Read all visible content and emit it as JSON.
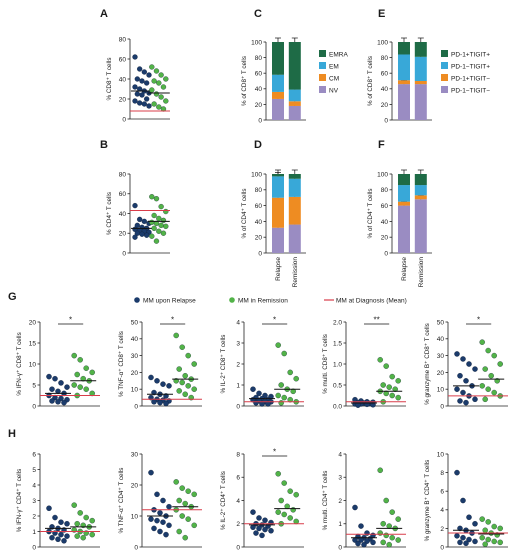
{
  "figure": {
    "panel_letters": [
      "A",
      "B",
      "C",
      "D",
      "E",
      "F",
      "G",
      "H"
    ],
    "legend_g": {
      "items": [
        {
          "label": "MM upon Relapse",
          "color": "#1b3b6b"
        },
        {
          "label": "MM in Remission",
          "color": "#52b348"
        },
        {
          "label": "MM at Diagnosis (Mean)",
          "color": "#d93d4a"
        }
      ]
    },
    "stack_groups": [
      "Relapse",
      "Remission"
    ]
  },
  "colors": {
    "relapse": "#1b3b6b",
    "remission": "#52b348",
    "diagnosis": "#d93d4a",
    "emra": "#1e6b46",
    "em": "#38a8d8",
    "cm": "#ee8c22",
    "nv": "#9a8cc2"
  },
  "chart_data": [
    {
      "id": "A",
      "type": "scatter",
      "ylabel": "% CD8⁺ T cells",
      "ylim": [
        0,
        80
      ],
      "yticks": [
        0,
        20,
        40,
        60,
        80
      ],
      "relapse": [
        62,
        50,
        47,
        44,
        40,
        38,
        36,
        32,
        30,
        28,
        26,
        25,
        24,
        20,
        18,
        16,
        15,
        13
      ],
      "remission": [
        52,
        48,
        44,
        40,
        38,
        36,
        32,
        29,
        25,
        22,
        18,
        15,
        12,
        10
      ],
      "relapse_mean": 28,
      "remission_mean": 26,
      "diagnosis_mean": 8,
      "sig": ""
    },
    {
      "id": "B",
      "type": "scatter",
      "ylabel": "% CD4⁺ T cells",
      "ylim": [
        0,
        80
      ],
      "yticks": [
        0,
        20,
        40,
        60,
        80
      ],
      "relapse": [
        48,
        34,
        32,
        30,
        28,
        26,
        25,
        24,
        23,
        22,
        21,
        20,
        19,
        18,
        16
      ],
      "remission": [
        57,
        55,
        47,
        42,
        38,
        35,
        33,
        31,
        30,
        28,
        27,
        25,
        22,
        20,
        17,
        12
      ],
      "relapse_mean": 25,
      "remission_mean": 32,
      "diagnosis_mean": 43,
      "sig": ""
    },
    {
      "id": "C",
      "type": "bar",
      "stacked": true,
      "ylabel": "% of CD8⁺ T cells",
      "ylim": [
        0,
        100
      ],
      "yticks": [
        0,
        20,
        40,
        60,
        80,
        100
      ],
      "categories": [
        "Relapse",
        "Remission"
      ],
      "series": [
        {
          "name": "NV",
          "values": [
            27,
            18
          ]
        },
        {
          "name": "CM",
          "values": [
            9,
            6
          ]
        },
        {
          "name": "EM",
          "values": [
            22,
            15
          ]
        },
        {
          "name": "EMRA",
          "values": [
            42,
            61
          ]
        }
      ]
    },
    {
      "id": "D",
      "type": "bar",
      "stacked": true,
      "ylabel": "% of CD4⁺ T cells",
      "ylim": [
        0,
        100
      ],
      "yticks": [
        0,
        20,
        40,
        60,
        80,
        100
      ],
      "categories": [
        "Relapse",
        "Remission"
      ],
      "series": [
        {
          "name": "NV",
          "values": [
            32,
            36
          ]
        },
        {
          "name": "CM",
          "values": [
            38,
            35
          ]
        },
        {
          "name": "EM",
          "values": [
            27,
            23
          ]
        },
        {
          "name": "EMRA",
          "values": [
            3,
            6
          ]
        }
      ]
    },
    {
      "id": "E",
      "type": "bar",
      "stacked": true,
      "ylabel": "% of CD8⁺ T cells",
      "ylim": [
        0,
        100
      ],
      "yticks": [
        0,
        20,
        40,
        60,
        80,
        100
      ],
      "categories": [
        "Relapse",
        "Remission"
      ],
      "series": [
        {
          "name": "PD-1−TIGIT−",
          "values": [
            46,
            46
          ]
        },
        {
          "name": "PD-1+TIGIT−",
          "values": [
            5,
            4
          ]
        },
        {
          "name": "PD-1−TIGIT+",
          "values": [
            33,
            31
          ]
        },
        {
          "name": "PD-1+TIGIT+",
          "values": [
            16,
            19
          ]
        }
      ]
    },
    {
      "id": "F",
      "type": "bar",
      "stacked": true,
      "ylabel": "% of CD4⁺ T cells",
      "ylim": [
        0,
        100
      ],
      "yticks": [
        0,
        20,
        40,
        60,
        80,
        100
      ],
      "categories": [
        "Relapse",
        "Remission"
      ],
      "series": [
        {
          "name": "PD-1−TIGIT−",
          "values": [
            60,
            68
          ]
        },
        {
          "name": "PD-1+TIGIT−",
          "values": [
            5,
            5
          ]
        },
        {
          "name": "PD-1−TIGIT+",
          "values": [
            21,
            13
          ]
        },
        {
          "name": "PD-1+TIGIT+",
          "values": [
            14,
            14
          ]
        }
      ]
    },
    {
      "id": "G1",
      "type": "scatter",
      "ylabel": "% IFN-γ⁺ CD8⁺ T cells",
      "ylim": [
        0,
        20
      ],
      "yticks": [
        0,
        5,
        10,
        15,
        20
      ],
      "relapse": [
        7,
        6.5,
        5.5,
        4.5,
        4,
        3.5,
        3,
        2.5,
        2,
        1.8,
        1.5,
        1.2,
        1,
        0.8
      ],
      "remission": [
        12,
        11,
        9,
        8,
        7.5,
        6.5,
        6,
        5,
        4.5,
        4,
        3,
        2.5
      ],
      "relapse_mean": 3,
      "remission_mean": 6,
      "diagnosis_mean": 2.5,
      "sig": "*"
    },
    {
      "id": "G2",
      "type": "scatter",
      "ylabel": "% TNF-α⁺ CD8⁺ T cells",
      "ylim": [
        0,
        50
      ],
      "yticks": [
        0,
        10,
        20,
        30,
        40,
        50
      ],
      "relapse": [
        17,
        15,
        13,
        12,
        8,
        7,
        6,
        5,
        4,
        3.5,
        3,
        2.5,
        2,
        1.5
      ],
      "remission": [
        42,
        35,
        30,
        25,
        22,
        18,
        16,
        15,
        14,
        12,
        10,
        9,
        7,
        5
      ],
      "relapse_mean": 7,
      "remission_mean": 16,
      "diagnosis_mean": 4,
      "sig": "*"
    },
    {
      "id": "G3",
      "type": "scatter",
      "ylabel": "% IL-2⁺ CD8⁺ T cells",
      "ylim": [
        0,
        4
      ],
      "yticks": [
        0,
        1,
        2,
        3,
        4
      ],
      "relapse": [
        0.8,
        0.6,
        0.5,
        0.45,
        0.4,
        0.35,
        0.3,
        0.3,
        0.25,
        0.2,
        0.2,
        0.15,
        0.1,
        0.1
      ],
      "remission": [
        2.9,
        2.5,
        1.6,
        1.3,
        1.0,
        0.8,
        0.7,
        0.5,
        0.4,
        0.3,
        0.2,
        0.15
      ],
      "relapse_mean": 0.35,
      "remission_mean": 0.8,
      "diagnosis_mean": 0.2,
      "sig": "*"
    },
    {
      "id": "G4",
      "type": "scatter",
      "ylabel": "% multi. CD8⁺ T cells",
      "ylim": [
        0,
        2.0
      ],
      "yticks": [
        0.0,
        0.5,
        1.0,
        1.5,
        2.0
      ],
      "relapse": [
        0.15,
        0.12,
        0.1,
        0.09,
        0.08,
        0.07,
        0.06,
        0.05,
        0.05,
        0.04,
        0.03,
        0.02
      ],
      "remission": [
        1.1,
        0.95,
        0.7,
        0.6,
        0.5,
        0.45,
        0.4,
        0.35,
        0.3,
        0.25,
        0.2,
        0.1
      ],
      "relapse_mean": 0.07,
      "remission_mean": 0.35,
      "diagnosis_mean": 0.1,
      "sig": "**"
    },
    {
      "id": "G5",
      "type": "scatter",
      "ylabel": "% granzyme B⁺ CD8⁺ T cells",
      "ylim": [
        0,
        50
      ],
      "yticks": [
        0,
        10,
        20,
        30,
        40,
        50
      ],
      "relapse": [
        31,
        28,
        25,
        22,
        18,
        15,
        12,
        10,
        8,
        6,
        4,
        3,
        2
      ],
      "remission": [
        38,
        33,
        30,
        25,
        22,
        18,
        15,
        12,
        10,
        8,
        6,
        4
      ],
      "relapse_mean": 12,
      "remission_mean": 16,
      "diagnosis_mean": 6,
      "sig": "*"
    },
    {
      "id": "H1",
      "type": "scatter",
      "ylabel": "% IFN-γ⁺ CD4⁺ T cells",
      "ylim": [
        0,
        6
      ],
      "yticks": [
        0,
        1,
        2,
        3,
        4,
        5,
        6
      ],
      "relapse": [
        2.5,
        1.9,
        1.6,
        1.5,
        1.3,
        1.2,
        1.1,
        1.0,
        0.9,
        0.8,
        0.7,
        0.6,
        0.5,
        0.4
      ],
      "remission": [
        2.7,
        2.2,
        1.9,
        1.7,
        1.5,
        1.4,
        1.3,
        1.1,
        1.0,
        0.9,
        0.8,
        0.7,
        0.6
      ],
      "relapse_mean": 1.2,
      "remission_mean": 1.3,
      "diagnosis_mean": 1.0,
      "sig": ""
    },
    {
      "id": "H2",
      "type": "scatter",
      "ylabel": "% TNF-α⁺ CD4⁺ T cells",
      "ylim": [
        0,
        30
      ],
      "yticks": [
        0,
        10,
        20,
        30
      ],
      "relapse": [
        24,
        17,
        15,
        13,
        12,
        11,
        10,
        9,
        8.5,
        8,
        7,
        6,
        5,
        4
      ],
      "remission": [
        21,
        19,
        18,
        17,
        15,
        14,
        13,
        12,
        10,
        9,
        7,
        5,
        3
      ],
      "relapse_mean": 10,
      "remission_mean": 13,
      "diagnosis_mean": 12,
      "sig": ""
    },
    {
      "id": "H3",
      "type": "scatter",
      "ylabel": "% IL-2⁺ CD4⁺ T cells",
      "ylim": [
        0,
        8
      ],
      "yticks": [
        0,
        2,
        4,
        6,
        8
      ],
      "relapse": [
        3.0,
        2.5,
        2.3,
        2.1,
        2.0,
        1.9,
        1.8,
        1.7,
        1.6,
        1.5,
        1.4,
        1.2,
        1.0
      ],
      "remission": [
        6.3,
        5.5,
        4.8,
        4.5,
        4.0,
        3.5,
        3.2,
        3.0,
        2.8,
        2.5,
        2.2,
        2.0
      ],
      "relapse_mean": 1.9,
      "remission_mean": 3.3,
      "diagnosis_mean": 2.0,
      "sig": "*"
    },
    {
      "id": "H4",
      "type": "scatter",
      "ylabel": "% multi. CD4⁺ T cells",
      "ylim": [
        0,
        4
      ],
      "yticks": [
        0,
        1,
        2,
        3,
        4
      ],
      "relapse": [
        1.7,
        0.9,
        0.6,
        0.5,
        0.45,
        0.4,
        0.35,
        0.3,
        0.3,
        0.25,
        0.2,
        0.15,
        0.1
      ],
      "remission": [
        3.3,
        2.0,
        1.5,
        1.2,
        1.0,
        0.9,
        0.8,
        0.6,
        0.5,
        0.4,
        0.3,
        0.2,
        0.1
      ],
      "relapse_mean": 0.4,
      "remission_mean": 0.8,
      "diagnosis_mean": 0.55,
      "sig": ""
    },
    {
      "id": "H5",
      "type": "scatter",
      "ylabel": "% granzyme B⁺ CD4⁺ T cells",
      "ylim": [
        0,
        10
      ],
      "yticks": [
        0,
        2,
        4,
        6,
        8,
        10
      ],
      "relapse": [
        8.0,
        5.0,
        3.2,
        2.5,
        2.0,
        1.8,
        1.5,
        1.2,
        1.0,
        0.8,
        0.6,
        0.5,
        0.4
      ],
      "remission": [
        3.0,
        2.7,
        2.2,
        2.0,
        1.8,
        1.5,
        1.3,
        1.0,
        0.8,
        0.6,
        0.5,
        0.3
      ],
      "relapse_mean": 1.8,
      "remission_mean": 1.4,
      "diagnosis_mean": 1.5,
      "sig": ""
    }
  ]
}
